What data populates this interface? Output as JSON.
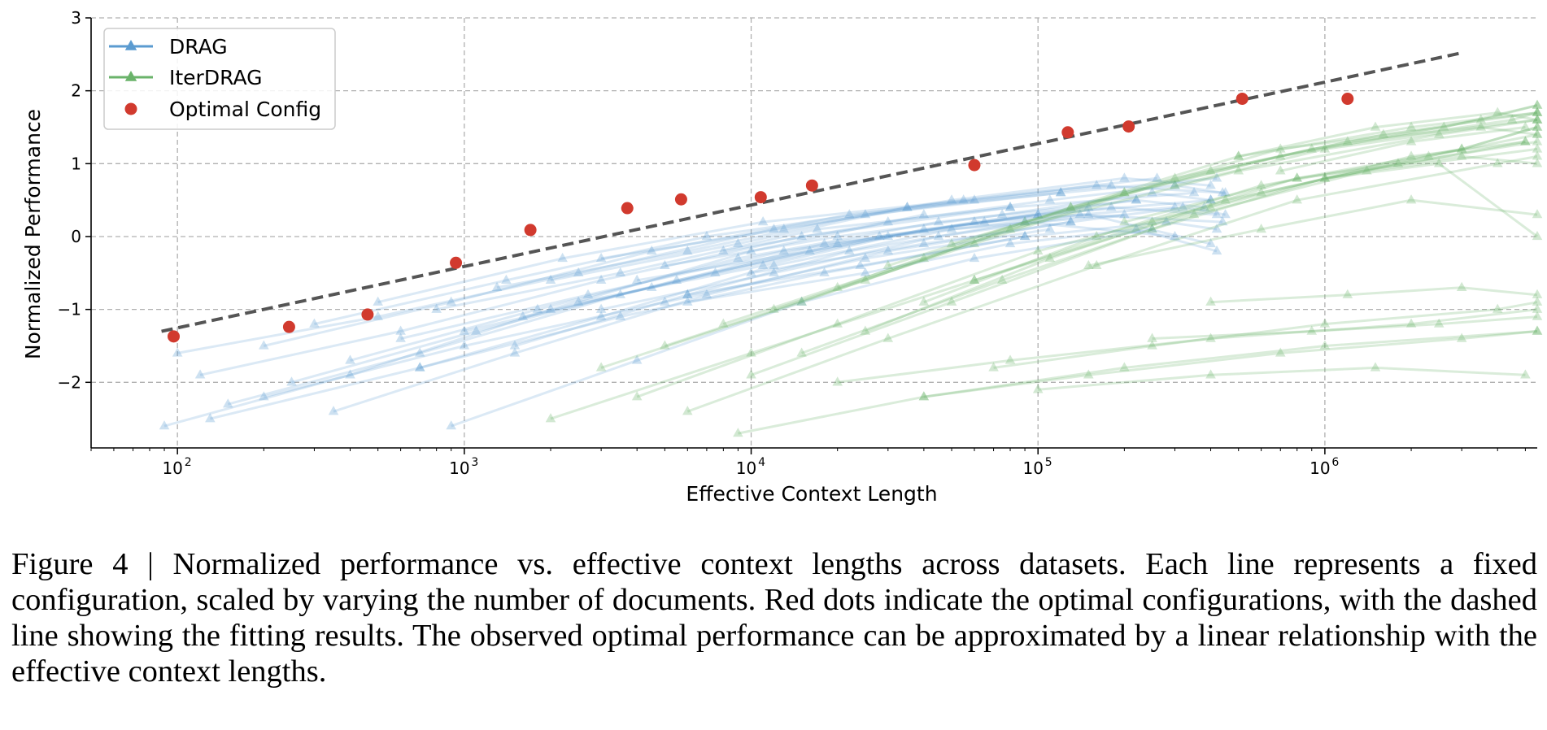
{
  "chart_data": {
    "type": "line",
    "title": "",
    "xlabel": "Effective Context Length",
    "ylabel": "Normalized Performance",
    "xscale": "log",
    "xlim": [
      50,
      5500000
    ],
    "ylim": [
      -2.9,
      3
    ],
    "grid": true,
    "legend_position": "top-left",
    "yticks": [
      -2,
      -1,
      0,
      1,
      2,
      3
    ],
    "ytick_labels": [
      "−2",
      "−1",
      "0",
      "1",
      "2",
      "3"
    ],
    "xtick_exponents": [
      "2",
      "3",
      "4",
      "5",
      "6"
    ],
    "xtick_base": "10",
    "colors": {
      "drag": "#5b9bd0",
      "iterdrag": "#6ab36a",
      "optimal": "#d13a2e",
      "fit": "#555555",
      "grid": "#b0b0b0"
    },
    "legend": [
      {
        "label": "DRAG",
        "marker": "triangle",
        "color": "#5b9bd0"
      },
      {
        "label": "IterDRAG",
        "marker": "triangle",
        "color": "#6ab36a"
      },
      {
        "label": "Optimal Config",
        "marker": "circle",
        "color": "#d13a2e"
      }
    ],
    "series": [
      {
        "name": "DRAG",
        "note": "many faint lines, each a fixed configuration scaled by number of documents",
        "lines": [
          {
            "x": [
              90,
              400,
              2000,
              10000,
              40000
            ],
            "y": [
              -2.6,
              -1.9,
              -1.0,
              -0.2,
              0.3
            ]
          },
          {
            "x": [
              100,
              500,
              2500,
              12000,
              60000
            ],
            "y": [
              -1.6,
              -1.1,
              -0.5,
              0.1,
              0.5
            ]
          },
          {
            "x": [
              120,
              600,
              3000,
              15000,
              80000
            ],
            "y": [
              -1.9,
              -1.3,
              -0.6,
              0.0,
              0.4
            ]
          },
          {
            "x": [
              150,
              700,
              3500,
              18000,
              100000
            ],
            "y": [
              -2.3,
              -1.6,
              -0.8,
              -0.1,
              0.3
            ]
          },
          {
            "x": [
              200,
              900,
              4500,
              22000,
              120000
            ],
            "y": [
              -1.5,
              -0.9,
              -0.2,
              0.3,
              0.6
            ]
          },
          {
            "x": [
              250,
              1100,
              5500,
              28000,
              150000
            ],
            "y": [
              -2.0,
              -1.3,
              -0.6,
              0.0,
              0.4
            ]
          },
          {
            "x": [
              300,
              1400,
              7000,
              35000,
              180000
            ],
            "y": [
              -1.2,
              -0.6,
              0.0,
              0.4,
              0.7
            ]
          },
          {
            "x": [
              400,
              1800,
              9000,
              45000,
              220000
            ],
            "y": [
              -1.7,
              -1.0,
              -0.3,
              0.2,
              0.5
            ]
          },
          {
            "x": [
              500,
              2200,
              11000,
              55000,
              260000
            ],
            "y": [
              -0.9,
              -0.3,
              0.2,
              0.5,
              0.8
            ]
          },
          {
            "x": [
              600,
              2700,
              13000,
              65000,
              300000
            ],
            "y": [
              -1.4,
              -0.8,
              -0.2,
              0.2,
              0.4
            ]
          },
          {
            "x": [
              800,
              3500,
              17000,
              80000,
              350000
            ],
            "y": [
              -1.0,
              -0.5,
              0.1,
              0.4,
              0.6
            ]
          },
          {
            "x": [
              1000,
              4500,
              20000,
              100000,
              400000
            ],
            "y": [
              -1.3,
              -0.7,
              -0.1,
              0.3,
              0.5
            ]
          },
          {
            "x": [
              1300,
              6000,
              25000,
              120000,
              420000
            ],
            "y": [
              -0.7,
              -0.2,
              0.3,
              0.6,
              0.8
            ]
          },
          {
            "x": [
              1600,
              7500,
              30000,
              140000,
              440000
            ],
            "y": [
              -1.1,
              -0.5,
              0.0,
              0.3,
              0.2
            ]
          },
          {
            "x": [
              2000,
              9000,
              35000,
              160000,
              450000
            ],
            "y": [
              -0.6,
              -0.1,
              0.4,
              0.7,
              0.6
            ]
          },
          {
            "x": [
              2500,
              11000,
              40000,
              180000,
              420000
            ],
            "y": [
              -0.9,
              -0.4,
              0.1,
              0.4,
              0.3
            ]
          },
          {
            "x": [
              3000,
              13000,
              50000,
              200000,
              400000
            ],
            "y": [
              -0.3,
              0.1,
              0.5,
              0.8,
              0.7
            ]
          },
          {
            "x": [
              4000,
              16000,
              60000,
              220000,
              380000
            ],
            "y": [
              -0.6,
              -0.2,
              0.2,
              0.5,
              0.4
            ]
          },
          {
            "x": [
              5000,
              20000,
              75000,
              250000,
              400000
            ],
            "y": [
              -0.4,
              0.0,
              0.3,
              0.6,
              0.5
            ]
          },
          {
            "x": [
              6000,
              24000,
              90000,
              280000,
              420000
            ],
            "y": [
              -0.8,
              -0.4,
              0.0,
              0.2,
              0.1
            ]
          },
          {
            "x": [
              8000,
              30000,
              110000,
              300000,
              440000
            ],
            "y": [
              -0.2,
              0.2,
              0.5,
              0.7,
              0.6
            ]
          },
          {
            "x": [
              10000,
              40000,
              130000,
              320000,
              450000
            ],
            "y": [
              -0.5,
              -0.1,
              0.2,
              0.4,
              0.3
            ]
          },
          {
            "x": [
              130,
              700,
              3500,
              18000,
              90000
            ],
            "y": [
              -2.5,
              -1.8,
              -1.1,
              -0.5,
              0.0
            ]
          },
          {
            "x": [
              200,
              1000,
              5000,
              25000,
              110000
            ],
            "y": [
              -2.2,
              -1.5,
              -0.9,
              -0.3,
              0.1
            ]
          },
          {
            "x": [
              350,
              1500,
              7000,
              30000,
              130000
            ],
            "y": [
              -2.4,
              -1.6,
              -0.8,
              -0.2,
              0.2
            ]
          },
          {
            "x": [
              700,
              3000,
              12000,
              50000,
              200000
            ],
            "y": [
              -1.8,
              -1.1,
              -0.4,
              0.1,
              0.3
            ]
          },
          {
            "x": [
              1500,
              6000,
              22000,
              90000,
              300000
            ],
            "y": [
              -1.5,
              -0.8,
              -0.2,
              0.2,
              0.0
            ]
          },
          {
            "x": [
              3000,
              12000,
              45000,
              150000,
              400000
            ],
            "y": [
              -1.0,
              -0.5,
              0.0,
              0.3,
              -0.1
            ]
          },
          {
            "x": [
              6000,
              25000,
              80000,
              220000,
              420000
            ],
            "y": [
              -0.9,
              -0.5,
              -0.1,
              0.1,
              -0.2
            ]
          },
          {
            "x": [
              900,
              4000,
              15000,
              60000,
              250000
            ],
            "y": [
              -2.6,
              -1.7,
              -0.9,
              -0.3,
              0.1
            ]
          }
        ]
      },
      {
        "name": "IterDRAG",
        "note": "many faint lines, each a fixed configuration scaled by number of documents",
        "lines": [
          {
            "x": [
              2000,
              10000,
              60000,
              400000,
              2000000,
              5000000
            ],
            "y": [
              -2.5,
              -1.6,
              -0.6,
              0.4,
              1.1,
              1.3
            ]
          },
          {
            "x": [
              3000,
              15000,
              80000,
              500000,
              2500000,
              5500000
            ],
            "y": [
              -1.8,
              -0.9,
              0.1,
              0.9,
              1.4,
              1.6
            ]
          },
          {
            "x": [
              4000,
              20000,
              100000,
              600000,
              3000000,
              5500000
            ],
            "y": [
              -2.2,
              -1.2,
              -0.2,
              0.6,
              1.2,
              1.5
            ]
          },
          {
            "x": [
              5000,
              25000,
              130000,
              700000,
              3500000,
              5500000
            ],
            "y": [
              -1.5,
              -0.6,
              0.4,
              1.1,
              1.6,
              1.8
            ]
          },
          {
            "x": [
              6000,
              30000,
              160000,
              800000,
              4000000,
              5500000
            ],
            "y": [
              -2.4,
              -1.4,
              -0.4,
              0.5,
              1.0,
              1.1
            ]
          },
          {
            "x": [
              8000,
              40000,
              200000,
              900000,
              4500000,
              5500000
            ],
            "y": [
              -1.2,
              -0.3,
              0.6,
              1.2,
              1.6,
              1.7
            ]
          },
          {
            "x": [
              10000,
              50000,
              250000,
              1000000,
              5000000
            ],
            "y": [
              -1.9,
              -0.9,
              0.1,
              0.8,
              1.3
            ]
          },
          {
            "x": [
              12000,
              60000,
              300000,
              1200000,
              5500000
            ],
            "y": [
              -1.0,
              -0.1,
              0.8,
              1.3,
              1.6
            ]
          },
          {
            "x": [
              15000,
              75000,
              350000,
              1400000,
              5500000
            ],
            "y": [
              -1.6,
              -0.6,
              0.3,
              0.9,
              1.2
            ]
          },
          {
            "x": [
              20000,
              90000,
              400000,
              1600000,
              5500000
            ],
            "y": [
              -0.7,
              0.2,
              0.9,
              1.4,
              1.7
            ]
          },
          {
            "x": [
              25000,
              110000,
              450000,
              1800000,
              5500000
            ],
            "y": [
              -1.3,
              -0.3,
              0.5,
              1.0,
              1.3
            ]
          },
          {
            "x": [
              30000,
              130000,
              500000,
              2000000,
              5500000
            ],
            "y": [
              -0.4,
              0.4,
              1.1,
              1.5,
              1.7
            ]
          },
          {
            "x": [
              40000,
              160000,
              600000,
              2300000,
              5500000
            ],
            "y": [
              -0.9,
              0.0,
              0.7,
              1.1,
              1.4
            ]
          },
          {
            "x": [
              50000,
              200000,
              700000,
              2600000,
              5500000
            ],
            "y": [
              -0.1,
              0.6,
              1.2,
              1.5,
              1.8
            ]
          },
          {
            "x": [
              60000,
              250000,
              800000,
              3000000,
              5500000
            ],
            "y": [
              -0.6,
              0.2,
              0.8,
              1.2,
              1.5
            ]
          },
          {
            "x": [
              9000,
              40000,
              200000,
              1000000,
              5500000
            ],
            "y": [
              -2.7,
              -2.2,
              -1.8,
              -1.5,
              -1.3
            ]
          },
          {
            "x": [
              20000,
              80000,
              400000,
              2000000,
              5500000
            ],
            "y": [
              -2.0,
              -1.7,
              -1.4,
              -1.2,
              -1.0
            ]
          },
          {
            "x": [
              40000,
              150000,
              700000,
              3000000,
              5500000
            ],
            "y": [
              -2.2,
              -1.9,
              -1.6,
              -1.4,
              -1.3
            ]
          },
          {
            "x": [
              70000,
              250000,
              1000000,
              4000000,
              5500000
            ],
            "y": [
              -1.8,
              -1.5,
              -1.2,
              -1.0,
              -0.9
            ]
          },
          {
            "x": [
              100000,
              400000,
              1500000,
              5000000
            ],
            "y": [
              -2.1,
              -1.9,
              -1.8,
              -1.9
            ]
          },
          {
            "x": [
              150000,
              600000,
              2000000,
              5500000
            ],
            "y": [
              -0.4,
              0.1,
              0.5,
              0.3
            ]
          },
          {
            "x": [
              200000,
              800000,
              3000000,
              5500000
            ],
            "y": [
              0.2,
              0.8,
              1.1,
              1.0
            ]
          },
          {
            "x": [
              300000,
              1000000,
              3500000,
              5500000
            ],
            "y": [
              0.7,
              1.2,
              1.5,
              1.4
            ]
          },
          {
            "x": [
              500000,
              1500000,
              4000000,
              5500000
            ],
            "y": [
              1.1,
              1.5,
              1.7,
              1.6
            ]
          },
          {
            "x": [
              700000,
              2000000,
              5000000
            ],
            "y": [
              0.9,
              1.3,
              1.5
            ]
          },
          {
            "x": [
              1000000,
              2500000,
              5500000
            ],
            "y": [
              0.8,
              1.0,
              0.0
            ]
          },
          {
            "x": [
              400000,
              1200000,
              3000000,
              5500000
            ],
            "y": [
              -0.9,
              -0.8,
              -0.7,
              -0.8
            ]
          },
          {
            "x": [
              250000,
              900000,
              2500000,
              5500000
            ],
            "y": [
              -1.4,
              -1.3,
              -1.2,
              -1.1
            ]
          }
        ]
      },
      {
        "name": "Optimal Config",
        "x": [
          97,
          245,
          460,
          935,
          1700,
          3700,
          5700,
          10800,
          16300,
          60000,
          127000,
          207000,
          515000,
          1200000
        ],
        "y": [
          -1.37,
          -1.24,
          -1.07,
          -0.36,
          0.09,
          0.39,
          0.51,
          0.54,
          0.7,
          0.98,
          1.43,
          1.51,
          1.89,
          1.89
        ]
      },
      {
        "name": "Fit",
        "style": "dashed",
        "x": [
          88,
          3000000
        ],
        "y": [
          -1.3,
          2.52
        ]
      }
    ]
  },
  "caption": "Figure 4 | Normalized performance vs. effective context lengths across datasets. Each line represents a fixed configuration, scaled by varying the number of documents. Red dots indicate the optimal configurations, with the dashed line showing the fitting results. The observed optimal performance can be approximated by a linear relationship with the effective context lengths."
}
